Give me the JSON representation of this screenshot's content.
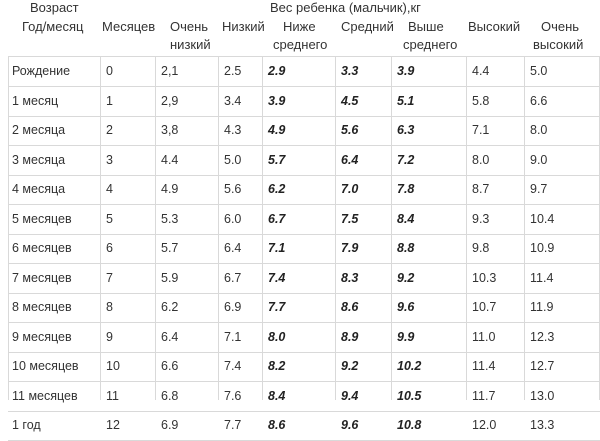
{
  "header": {
    "age_label": "Возраст",
    "age_sub_label": "Год/месяц",
    "months_label": "Месяцев",
    "weight_title": "Вес ребенка (мальчик),кг",
    "col_very_low_1": "Очень",
    "col_very_low_2": "низкий",
    "col_low": "Низкий",
    "col_below_avg_1": "Ниже",
    "col_below_avg_2": "среднего",
    "col_avg": "Средний",
    "col_above_avg_1": "Выше",
    "col_above_avg_2": "среднего",
    "col_high": "Высокий",
    "col_very_high_1": "Очень",
    "col_very_high_2": "высокий"
  },
  "rows": [
    {
      "age": "Рождение",
      "months": "0",
      "very_low": "2,1",
      "low": "2.5",
      "below_avg": "2.9",
      "avg": "3.3",
      "above_avg": "3.9",
      "high": "4.4",
      "very_high": "5.0"
    },
    {
      "age": "1 месяц",
      "months": "1",
      "very_low": "2,9",
      "low": "3.4",
      "below_avg": "3.9",
      "avg": "4.5",
      "above_avg": "5.1",
      "high": "5.8",
      "very_high": "6.6"
    },
    {
      "age": "2 месяца",
      "months": "2",
      "very_low": "3,8",
      "low": "4.3",
      "below_avg": "4.9",
      "avg": "5.6",
      "above_avg": "6.3",
      "high": "7.1",
      "very_high": "8.0"
    },
    {
      "age": "3 месяца",
      "months": "3",
      "very_low": "4.4",
      "low": "5.0",
      "below_avg": "5.7",
      "avg": "6.4",
      "above_avg": "7.2",
      "high": "8.0",
      "very_high": "9.0"
    },
    {
      "age": "4 месяца",
      "months": "4",
      "very_low": "4.9",
      "low": "5.6",
      "below_avg": "6.2",
      "avg": "7.0",
      "above_avg": "7.8",
      "high": "8.7",
      "very_high": "9.7"
    },
    {
      "age": "5 месяцев",
      "months": "5",
      "very_low": "5.3",
      "low": "6.0",
      "below_avg": "6.7",
      "avg": "7.5",
      "above_avg": "8.4",
      "high": "9.3",
      "very_high": "10.4"
    },
    {
      "age": "6 месяцев",
      "months": "6",
      "very_low": "5.7",
      "low": "6.4",
      "below_avg": "7.1",
      "avg": "7.9",
      "above_avg": "8.8",
      "high": "9.8",
      "very_high": "10.9"
    },
    {
      "age": "7 месяцев",
      "months": "7",
      "very_low": "5.9",
      "low": "6.7",
      "below_avg": "7.4",
      "avg": "8.3",
      "above_avg": "9.2",
      "high": "10.3",
      "very_high": "11.4"
    },
    {
      "age": "8 месяцев",
      "months": "8",
      "very_low": "6.2",
      "low": "6.9",
      "below_avg": "7.7",
      "avg": "8.6",
      "above_avg": "9.6",
      "high": "10.7",
      "very_high": "11.9"
    },
    {
      "age": "9 месяцев",
      "months": "9",
      "very_low": "6.4",
      "low": "7.1",
      "below_avg": "8.0",
      "avg": "8.9",
      "above_avg": "9.9",
      "high": "11.0",
      "very_high": "12.3"
    },
    {
      "age": "10 месяцев",
      "months": "10",
      "very_low": "6.6",
      "low": "7.4",
      "below_avg": "8.2",
      "avg": "9.2",
      "above_avg": "10.2",
      "high": "11.4",
      "very_high": "12.7"
    },
    {
      "age": "11 месяцев",
      "months": "11",
      "very_low": "6.8",
      "low": "7.6",
      "below_avg": "8.4",
      "avg": "9.4",
      "above_avg": "10.5",
      "high": "11.7",
      "very_high": "13.0"
    },
    {
      "age": "1 год",
      "months": "12",
      "very_low": "6.9",
      "low": "7.7",
      "below_avg": "8.6",
      "avg": "9.6",
      "above_avg": "10.8",
      "high": "12.0",
      "very_high": "13.3"
    }
  ],
  "colors": {
    "grid_line": "#d9d9d9",
    "text": "#333333"
  }
}
